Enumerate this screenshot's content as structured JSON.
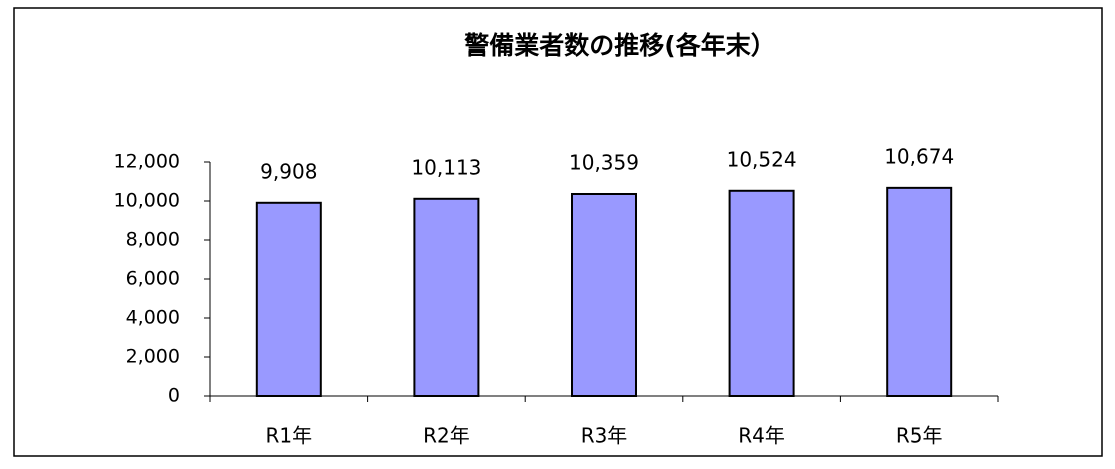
{
  "chart_data": {
    "type": "bar",
    "title": "警備業者数の推移(各年末）",
    "categories": [
      "R1年",
      "R2年",
      "R3年",
      "R4年",
      "R5年"
    ],
    "values": [
      9908,
      10113,
      10359,
      10524,
      10674
    ],
    "value_labels": [
      "9,908",
      "10,113",
      "10,359",
      "10,524",
      "10,674"
    ],
    "color": "#9999ff",
    "ylim": [
      0,
      12000
    ],
    "yticks": [
      0,
      {
        "value": 2000,
        "label": "2,000"
      },
      {
        "value": 4000,
        "label": "4,000"
      },
      {
        "value": 6000,
        "label": "6,000"
      },
      {
        "value": 8000,
        "label": "8,000"
      },
      {
        "value": 10000,
        "label": "10,000"
      },
      {
        "value": 12000,
        "label": "12,000"
      }
    ],
    "grid": false
  }
}
